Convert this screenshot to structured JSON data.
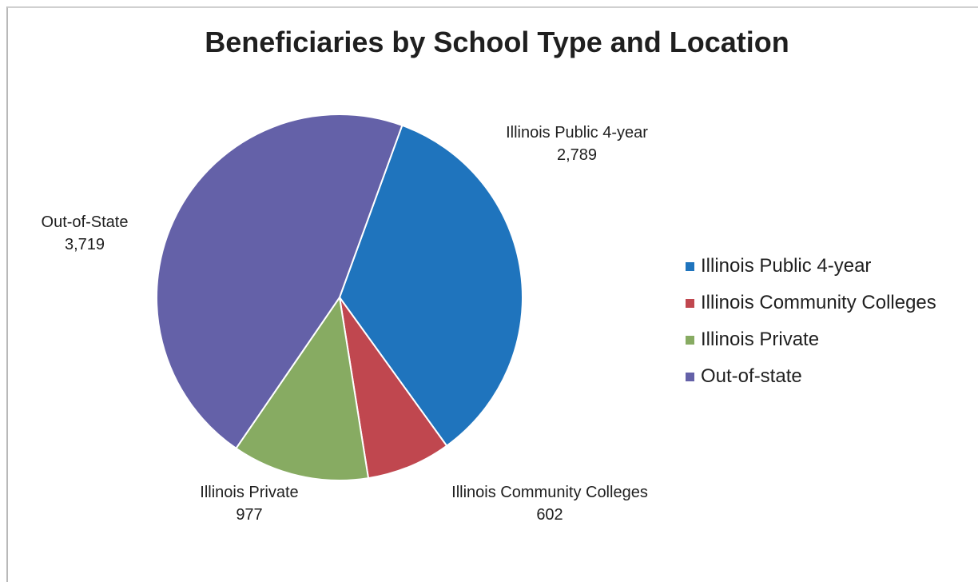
{
  "chart_data": {
    "type": "pie",
    "title": "Beneficiaries by School Type and Location",
    "slices": [
      {
        "label": "Illinois Public 4-year",
        "value": 2789,
        "value_text": "2,789",
        "color": "#1f74bd"
      },
      {
        "label": "Illinois Community Colleges",
        "value": 602,
        "value_text": "602",
        "color": "#c0474f"
      },
      {
        "label": "Illinois Private",
        "value": 977,
        "value_text": "977",
        "color": "#87ab62"
      },
      {
        "label": "Out-of-State",
        "value": 3719,
        "value_text": "3,719",
        "color": "#6461a8"
      }
    ],
    "legend": {
      "placement": "right",
      "items": [
        {
          "label": "Illinois Public 4-year",
          "color": "#1f74bd"
        },
        {
          "label": "Illinois Community Colleges",
          "color": "#c0474f"
        },
        {
          "label": "Illinois Private",
          "color": "#87ab62"
        },
        {
          "label": "Out-of-state",
          "color": "#6461a8"
        }
      ]
    }
  }
}
